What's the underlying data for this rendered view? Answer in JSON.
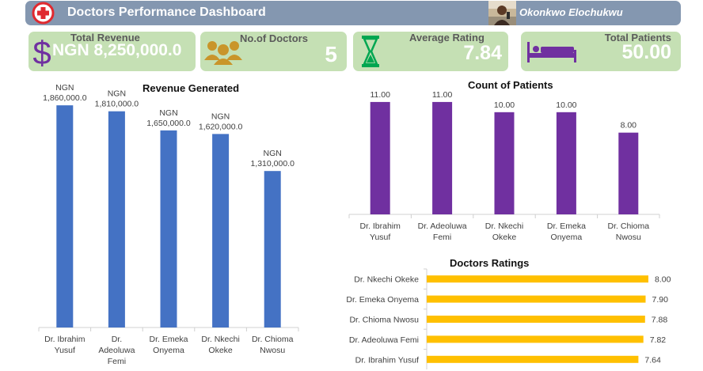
{
  "header": {
    "title": "Doctors Performance Dashboard",
    "user_name": "Okonkwo Elochukwu",
    "brand_color": "#8497b0"
  },
  "kpis": {
    "revenue": {
      "label": "Total Revenue",
      "value": "NGN 8,250,000.0",
      "icon": "dollar-icon"
    },
    "doctors": {
      "label": "No.of Doctors",
      "value": "5",
      "icon": "people-icon"
    },
    "rating": {
      "label": "Average Rating",
      "value": "7.84",
      "icon": "hourglass-icon"
    },
    "patients": {
      "label": "Total Patients",
      "value": "50.00",
      "icon": "bed-icon"
    },
    "card_color": "#c5e0b4"
  },
  "chart_data": [
    {
      "type": "bar",
      "title": "Revenue Generated",
      "categories": [
        [
          "Dr. Ibrahim",
          "Yusuf"
        ],
        [
          "Dr.",
          "Adeoluwa",
          "Femi"
        ],
        [
          "Dr. Emeka",
          "Onyema"
        ],
        [
          "Dr. Nkechi",
          "Okeke"
        ],
        [
          "Dr. Chioma",
          "Nwosu"
        ]
      ],
      "values": [
        1860000,
        1810000,
        1650000,
        1620000,
        1310000
      ],
      "labels": [
        [
          "NGN",
          "1,860,000.0"
        ],
        [
          "NGN",
          "1,810,000.0"
        ],
        [
          "NGN",
          "1,650,000.0"
        ],
        [
          "NGN",
          "1,620,000.0"
        ],
        [
          "NGN",
          "1,310,000.0"
        ]
      ],
      "ylim": [
        0,
        2000000
      ],
      "color": "#4472c4",
      "grid": false
    },
    {
      "type": "bar",
      "title": "Count of Patients",
      "categories": [
        [
          "Dr. Ibrahim",
          "Yusuf"
        ],
        [
          "Dr. Adeoluwa",
          "Femi"
        ],
        [
          "Dr. Nkechi",
          "Okeke"
        ],
        [
          "Dr. Emeka",
          "Onyema"
        ],
        [
          "Dr. Chioma",
          "Nwosu"
        ]
      ],
      "values": [
        11,
        11,
        10,
        10,
        8
      ],
      "labels": [
        "11.00",
        "11.00",
        "10.00",
        "10.00",
        "8.00"
      ],
      "ylim": [
        0,
        12
      ],
      "color": "#7030a0",
      "grid": false
    },
    {
      "type": "bar",
      "orientation": "horizontal",
      "title": "Doctors Ratings",
      "categories": [
        "Dr. Nkechi Okeke",
        "Dr. Emeka Onyema",
        "Dr. Chioma Nwosu",
        "Dr. Adeoluwa Femi",
        "Dr. Ibrahim Yusuf"
      ],
      "values": [
        8.0,
        7.9,
        7.88,
        7.82,
        7.64
      ],
      "labels": [
        "8.00",
        "7.90",
        "7.88",
        "7.82",
        "7.64"
      ],
      "xlim": [
        0,
        8.6
      ],
      "color": "#ffc000",
      "grid": false
    }
  ]
}
